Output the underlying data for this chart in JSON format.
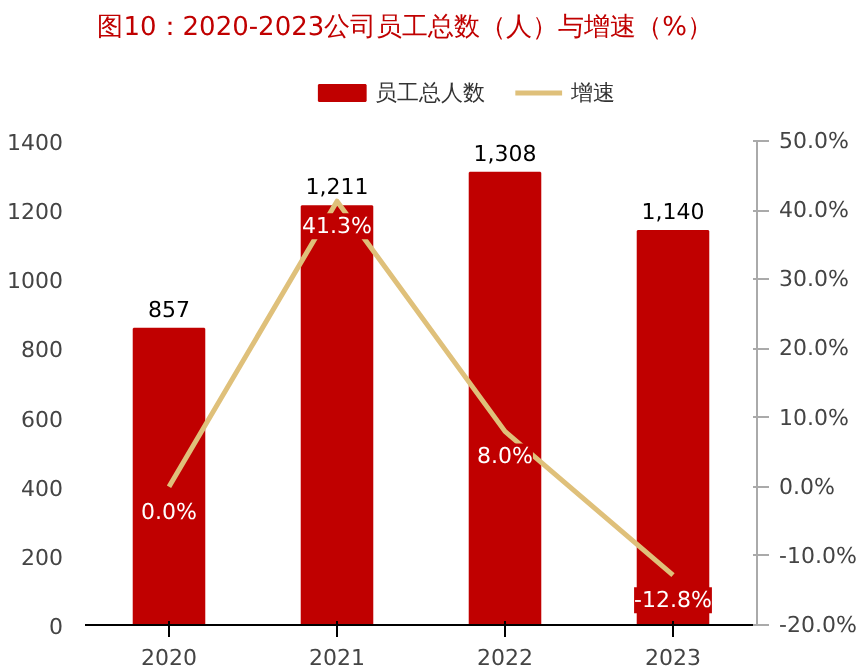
{
  "chart_data": {
    "type": "bar",
    "title": "图10：2020-2023公司员工总数（人）与增速（%）",
    "categories": [
      "2020",
      "2021",
      "2022",
      "2023"
    ],
    "series": [
      {
        "name": "员工总人数",
        "color": "#c00000",
        "values": [
          857,
          1211,
          1308,
          1140
        ],
        "value_labels": [
          "857",
          "1,211",
          "1,308",
          "1,140"
        ]
      },
      {
        "name": "增速",
        "type": "line",
        "axis": "y2",
        "color": "#dfc07a",
        "values": [
          0.0,
          41.3,
          8.0,
          -12.8
        ],
        "value_labels": [
          "0.0%",
          "41.3%",
          "8.0%",
          "-12.8%"
        ]
      }
    ],
    "ylim": [
      0,
      1400
    ],
    "yticks": [
      0,
      200,
      400,
      600,
      800,
      1000,
      1200,
      1400
    ],
    "y2lim": [
      -20,
      50
    ],
    "y2ticks": [
      {
        "value": -20,
        "label": "-20.0%"
      },
      {
        "value": -10,
        "label": "-10.0%"
      },
      {
        "value": 0,
        "label": "0.0%"
      },
      {
        "value": 10,
        "label": "10.0%"
      },
      {
        "value": 20,
        "label": "20.0%"
      },
      {
        "value": 30,
        "label": "30.0%"
      },
      {
        "value": 40,
        "label": "40.0%"
      },
      {
        "value": 50,
        "label": "50.0%"
      }
    ],
    "grid": false,
    "legend": "top"
  }
}
